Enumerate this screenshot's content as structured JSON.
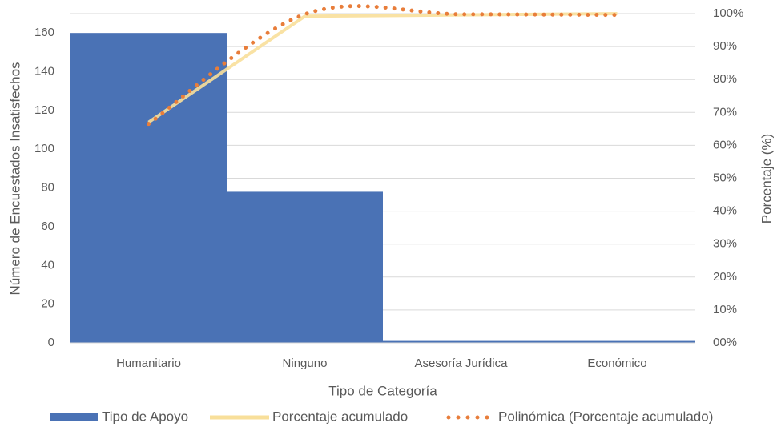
{
  "chart_data": {
    "type": "pareto",
    "x_label": "Tipo de Categoría",
    "y_label": "Número de Encuestados Insatisfechos",
    "y2_label": "Porcentaje (%)",
    "categories": [
      "Humanitario",
      "Ninguno",
      "Asesoría Jurídica",
      "Económico"
    ],
    "series": [
      {
        "name": "Tipo de Apoyo",
        "kind": "bar",
        "color": "#4a72b5",
        "values": [
          160,
          78,
          1,
          1
        ]
      },
      {
        "name": "Porcentaje acumulado",
        "kind": "line",
        "color": "#f8df9a",
        "axis": "y2",
        "values": [
          67,
          99.2,
          99.6,
          100
        ]
      },
      {
        "name": "Polinómica (Porcentaje acumulado)",
        "kind": "trend",
        "color": "#e87d3a",
        "axis": "y2",
        "values": [
          66.5,
          99.8,
          99.8,
          99.6
        ]
      }
    ],
    "ylim": [
      0,
      170
    ],
    "yticks": [
      0,
      20,
      40,
      60,
      80,
      100,
      120,
      140,
      160
    ],
    "y2lim": [
      0,
      100
    ],
    "y2ticks": [
      {
        "value": 0,
        "label": "00%"
      },
      {
        "value": 10,
        "label": "10%"
      },
      {
        "value": 20,
        "label": "20%"
      },
      {
        "value": 30,
        "label": "30%"
      },
      {
        "value": 40,
        "label": "40%"
      },
      {
        "value": 50,
        "label": "50%"
      },
      {
        "value": 60,
        "label": "60%"
      },
      {
        "value": 70,
        "label": "70%"
      },
      {
        "value": 80,
        "label": "80%"
      },
      {
        "value": 90,
        "label": "90%"
      },
      {
        "value": 100,
        "label": "100%"
      }
    ],
    "grid": true
  }
}
